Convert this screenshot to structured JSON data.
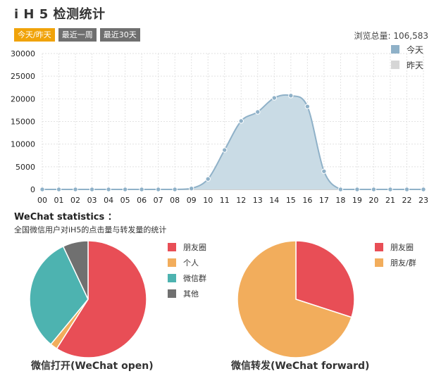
{
  "header": {
    "title": "i H 5 检测统计",
    "tabs": [
      {
        "label": "今天/昨天",
        "active": true
      },
      {
        "label": "最近一周",
        "active": false
      },
      {
        "label": "最近30天",
        "active": false
      }
    ],
    "total_label": "浏览总量: 106,583"
  },
  "chart_data": [
    {
      "type": "area",
      "x": [
        "00",
        "01",
        "02",
        "03",
        "04",
        "05",
        "06",
        "07",
        "08",
        "09",
        "10",
        "11",
        "12",
        "13",
        "14",
        "15",
        "16",
        "17",
        "18",
        "19",
        "20",
        "21",
        "22",
        "23"
      ],
      "series": [
        {
          "name": "今天",
          "color": "#8fb1c8",
          "values": [
            0,
            0,
            0,
            0,
            0,
            0,
            0,
            0,
            0,
            200,
            2300,
            8700,
            15100,
            17100,
            20200,
            20700,
            18300,
            4000,
            0,
            0,
            0,
            0,
            0,
            0
          ]
        },
        {
          "name": "昨天",
          "color": "#d6d6d6",
          "values": [
            0,
            0,
            0,
            0,
            0,
            0,
            0,
            0,
            0,
            0,
            0,
            0,
            0,
            0,
            0,
            0,
            0,
            0,
            0,
            0,
            0,
            0,
            0,
            0
          ]
        }
      ],
      "ylim": [
        0,
        30000
      ],
      "yticks": [
        0,
        5000,
        10000,
        15000,
        20000,
        25000,
        30000
      ],
      "grid": true,
      "legend": "top-right"
    },
    {
      "type": "pie",
      "title": "微信打开(WeChat open)",
      "labels": [
        "朋友圈",
        "个人",
        "微信群",
        "其他"
      ],
      "colors": [
        "#e84e56",
        "#f2ad5c",
        "#4db3b0",
        "#707070"
      ],
      "values": [
        59,
        2,
        32,
        7
      ]
    },
    {
      "type": "pie",
      "title": "微信转发(WeChat forward)",
      "labels": [
        "朋友圈",
        "朋友/群"
      ],
      "colors": [
        "#e84e56",
        "#f2ad5c"
      ],
      "values": [
        30,
        70
      ]
    }
  ],
  "section": {
    "title": "WeChat statistics ：",
    "subtitle": "全国微信用户对iH5的点击量与转发量的统计"
  }
}
